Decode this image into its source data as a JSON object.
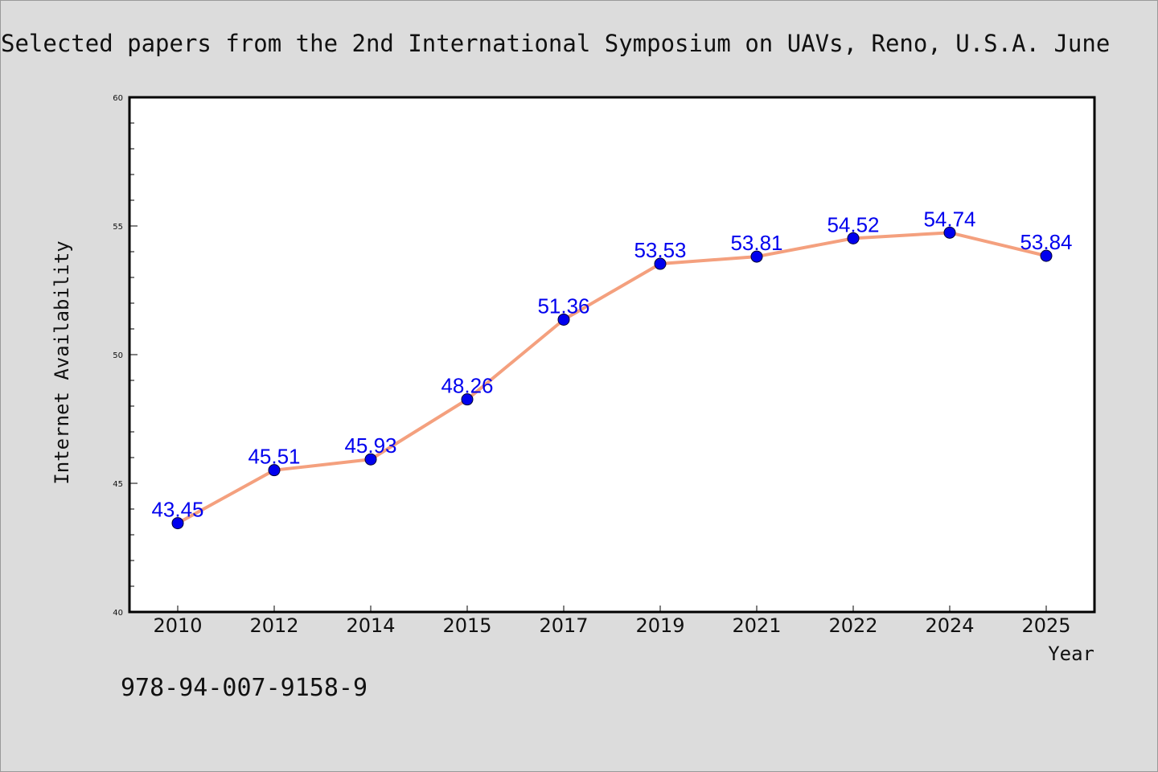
{
  "chart_data": {
    "type": "line",
    "title": "Selected papers from the 2nd International Symposium on UAVs, Reno, U.S.A. June",
    "xlabel": "Year",
    "ylabel": "Internet Availability",
    "categories": [
      "2010",
      "2012",
      "2014",
      "2015",
      "2017",
      "2019",
      "2021",
      "2022",
      "2024",
      "2025"
    ],
    "series": [
      {
        "values": [
          43.45,
          45.51,
          45.93,
          48.26,
          51.36,
          53.53,
          53.81,
          54.52,
          54.74,
          53.84
        ],
        "line_color": "#f4a07e",
        "marker_color": "#0000ee"
      }
    ],
    "data_labels": [
      "43.45",
      "45.51",
      "45.93",
      "48.26",
      "51.36",
      "53.53",
      "53.81",
      "54.52",
      "54.74",
      "53.84"
    ],
    "ylim": [
      40,
      60
    ],
    "yticks": [
      "40",
      "45",
      "50",
      "55",
      "60"
    ],
    "grid": false,
    "legend": "none",
    "label_color": "#0000ee"
  },
  "footer": {
    "isbn": "978-94-007-9158-9"
  }
}
